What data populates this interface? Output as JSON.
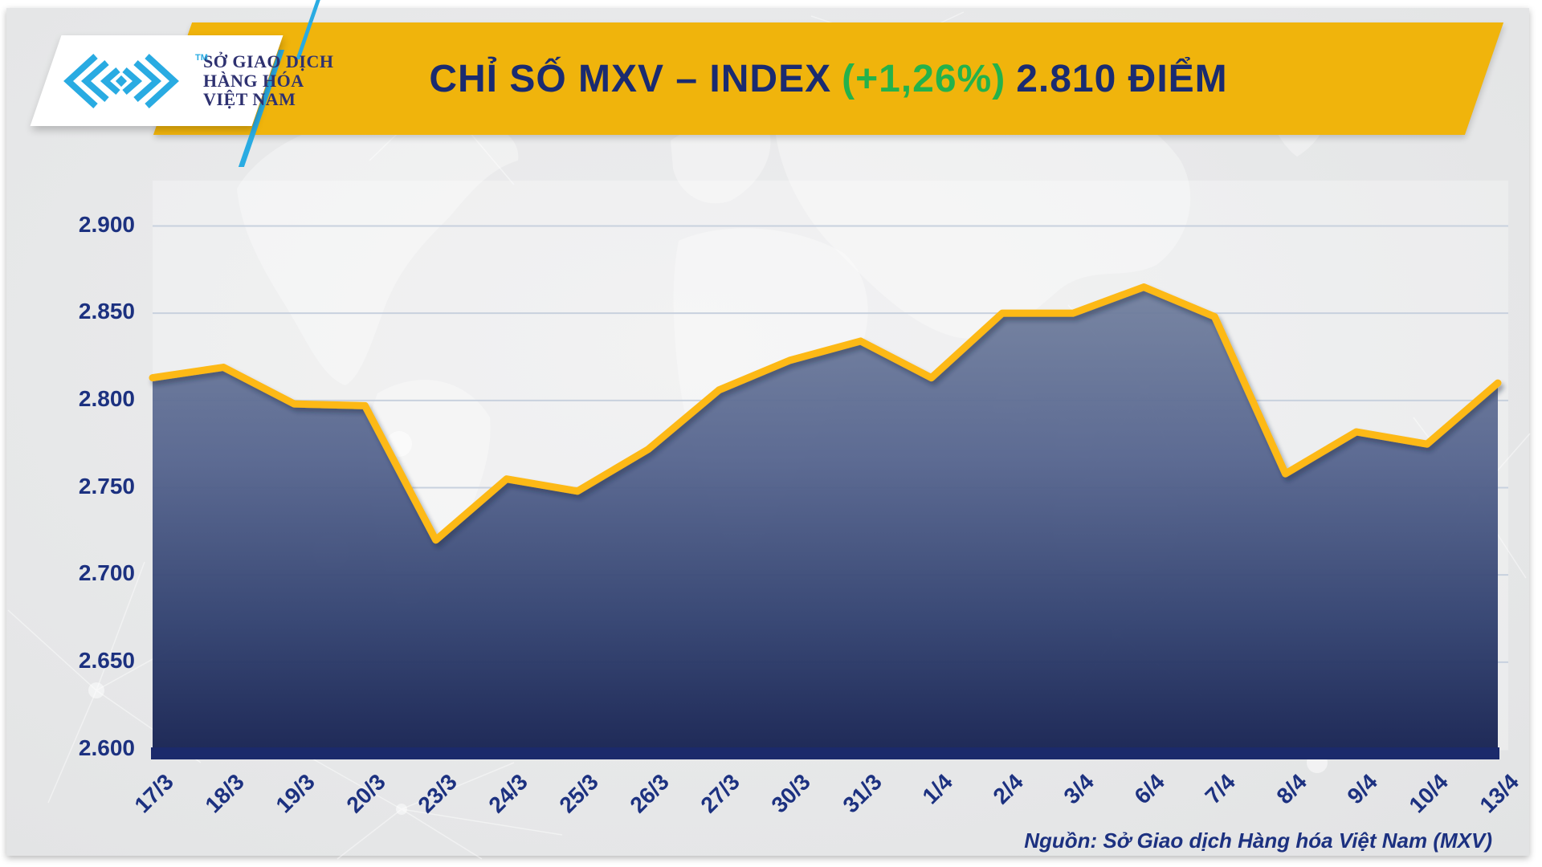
{
  "page": {
    "background": "#e8e9ea"
  },
  "header": {
    "title_prefix": "CHỈ SỐ MXV – INDEX",
    "title_change": "(+1,26%)",
    "title_suffix": "2.810 ĐIỂM",
    "banner_color": "#F0B40C",
    "title_color": "#1A2B70",
    "change_color": "#24B24B"
  },
  "logo": {
    "line1": "SỞ GIAO DỊCH",
    "line2": "HÀNG HÓA",
    "line3": "VIỆT NAM",
    "tm": "TM",
    "mark_color": "#29ABE2",
    "text_color": "#2E3170"
  },
  "footer": {
    "source": "Nguồn: Sở Giao dịch Hàng hóa Việt Nam (MXV)"
  },
  "chart_data": {
    "type": "area",
    "title": "CHỈ SỐ MXV – INDEX (+1,26%) 2.810 ĐIỂM",
    "categories": [
      "17/3",
      "18/3",
      "19/3",
      "20/3",
      "23/3",
      "24/3",
      "25/3",
      "26/3",
      "27/3",
      "30/3",
      "31/3",
      "1/4",
      "2/4",
      "3/4",
      "6/4",
      "7/4",
      "8/4",
      "9/4",
      "10/4",
      "13/4"
    ],
    "values": [
      2813,
      2819,
      2798,
      2797,
      2720,
      2755,
      2748,
      2772,
      2806,
      2823,
      2834,
      2813,
      2850,
      2850,
      2865,
      2848,
      2758,
      2782,
      2775,
      2810
    ],
    "xlabel": "",
    "ylabel": "",
    "ylim": [
      2600,
      2900
    ],
    "y_ticks": [
      2600,
      2650,
      2700,
      2750,
      2800,
      2850,
      2900
    ],
    "y_tick_labels": [
      "2.600",
      "2.650",
      "2.700",
      "2.750",
      "2.800",
      "2.850",
      "2.900"
    ],
    "grid": true,
    "legend_position": "none",
    "line_color": "#FDB913",
    "area_gradient": [
      "#73819F",
      "#55648E",
      "#30406F",
      "#142050"
    ],
    "grid_color": "#C8D1DE",
    "axis_bar_color": "#1B2A6B",
    "tick_label_color": "#1C3180"
  }
}
